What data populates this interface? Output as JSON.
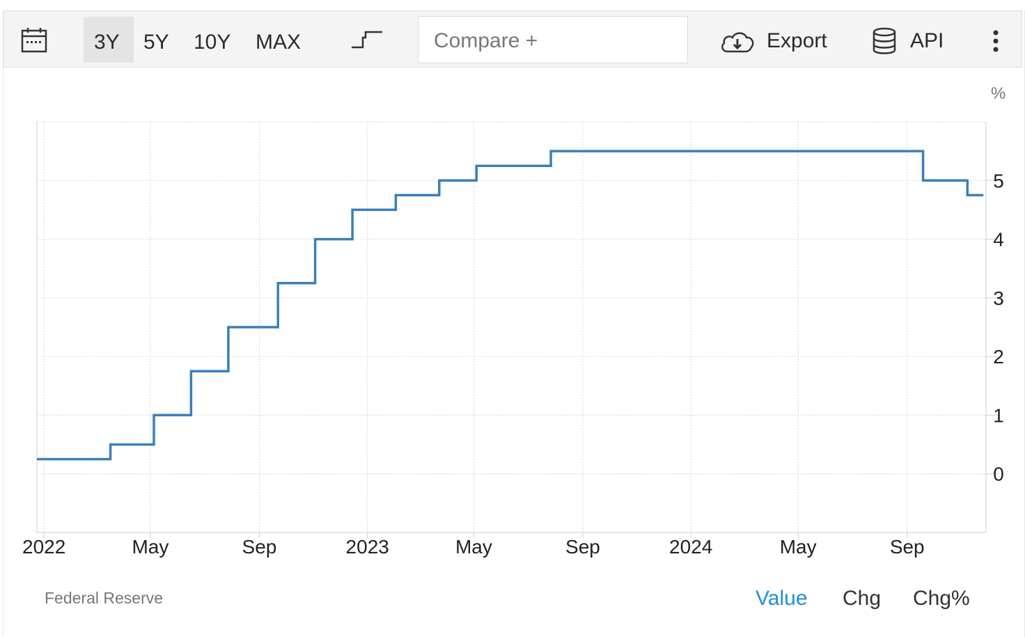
{
  "toolbar": {
    "calendar_icon": "calendar-icon",
    "ranges": [
      "3Y",
      "5Y",
      "10Y",
      "MAX"
    ],
    "active_range": "3Y",
    "chart_style_icon": "step-line-icon",
    "compare_placeholder": "Compare +",
    "export_label": "Export",
    "export_icon": "cloud-download-icon",
    "api_label": "API",
    "api_icon": "database-icon",
    "menu_icon": "more-vertical-icon"
  },
  "footer": {
    "source": "Federal Reserve",
    "modes": [
      "Value",
      "Chg",
      "Chg%"
    ],
    "active_mode": "Value"
  },
  "colors": {
    "line": "#3a7fba",
    "accent": "#1e8fd6",
    "grid": "#d6d6d6"
  },
  "chart_data": {
    "type": "line",
    "style": "step",
    "unit_label": "%",
    "x_tick_labels": [
      "2022",
      "May",
      "Sep",
      "2023",
      "May",
      "Sep",
      "2024",
      "May",
      "Sep"
    ],
    "x_tick_dates": [
      "2022-01-01",
      "2022-05-01",
      "2022-09-01",
      "2023-01-01",
      "2023-05-01",
      "2023-09-01",
      "2024-01-01",
      "2024-05-01",
      "2024-09-01"
    ],
    "y_ticks": [
      0,
      1,
      2,
      3,
      4,
      5
    ],
    "xlim": [
      "2021-12-24",
      "2024-11-29"
    ],
    "ylim": [
      -1,
      6
    ],
    "grid": true,
    "y_axis_side": "right",
    "series": [
      {
        "points": [
          {
            "date": "2021-12-24",
            "value": 0.25
          },
          {
            "date": "2022-03-17",
            "value": 0.5
          },
          {
            "date": "2022-05-05",
            "value": 1.0
          },
          {
            "date": "2022-06-16",
            "value": 1.75
          },
          {
            "date": "2022-07-28",
            "value": 2.5
          },
          {
            "date": "2022-09-22",
            "value": 3.25
          },
          {
            "date": "2022-11-03",
            "value": 4.0
          },
          {
            "date": "2022-12-15",
            "value": 4.5
          },
          {
            "date": "2023-02-02",
            "value": 4.75
          },
          {
            "date": "2023-03-23",
            "value": 5.0
          },
          {
            "date": "2023-05-04",
            "value": 5.25
          },
          {
            "date": "2023-07-27",
            "value": 5.5
          },
          {
            "date": "2024-09-19",
            "value": 5.0
          },
          {
            "date": "2024-11-08",
            "value": 4.75
          }
        ]
      }
    ]
  }
}
